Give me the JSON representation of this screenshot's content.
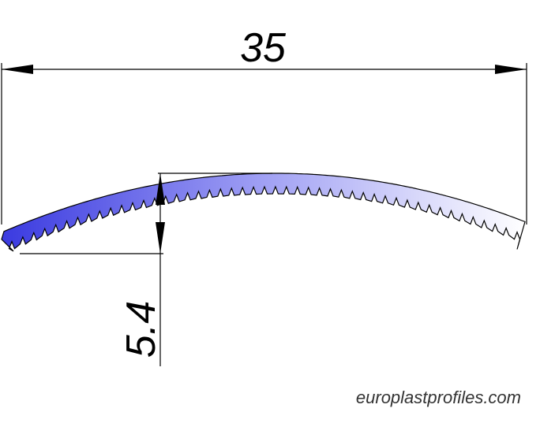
{
  "dimensions": {
    "width": "35",
    "height": "5.4"
  },
  "watermark": "europlastprofiles.com"
}
